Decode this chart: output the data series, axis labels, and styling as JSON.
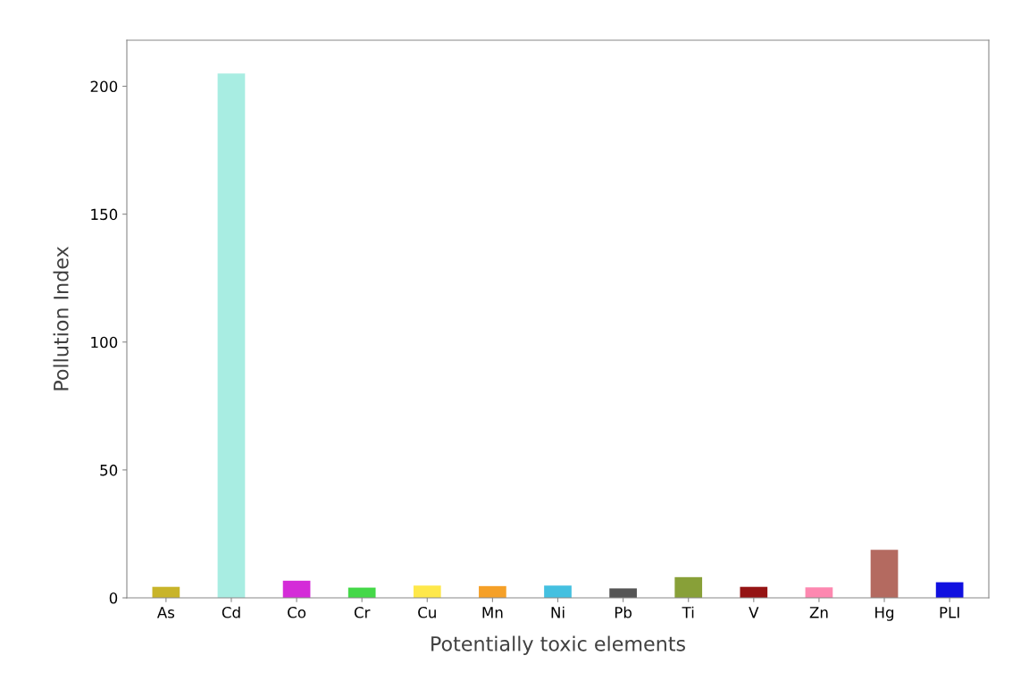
{
  "chart_data": {
    "type": "bar",
    "xlabel": "Potentially toxic elements",
    "ylabel": "Pollution Index",
    "categories": [
      "As",
      "Cd",
      "Co",
      "Cr",
      "Cu",
      "Mn",
      "Ni",
      "Pb",
      "Ti",
      "V",
      "Zn",
      "Hg",
      "PLI"
    ],
    "values": [
      4.3,
      205,
      6.7,
      4.0,
      4.8,
      4.6,
      4.8,
      3.7,
      8.1,
      4.3,
      4.1,
      18.8,
      6.1
    ],
    "colors": [
      "#c8b42a",
      "#a8ede2",
      "#d42cd8",
      "#44d848",
      "#fee84a",
      "#f5a028",
      "#44c0e0",
      "#555555",
      "#88a038",
      "#951414",
      "#fd88b0",
      "#b46a60",
      "#1010e0"
    ],
    "ylim": [
      0,
      218
    ],
    "yticks": [
      0,
      50,
      100,
      150,
      200
    ],
    "grid": false,
    "legend": false
  }
}
